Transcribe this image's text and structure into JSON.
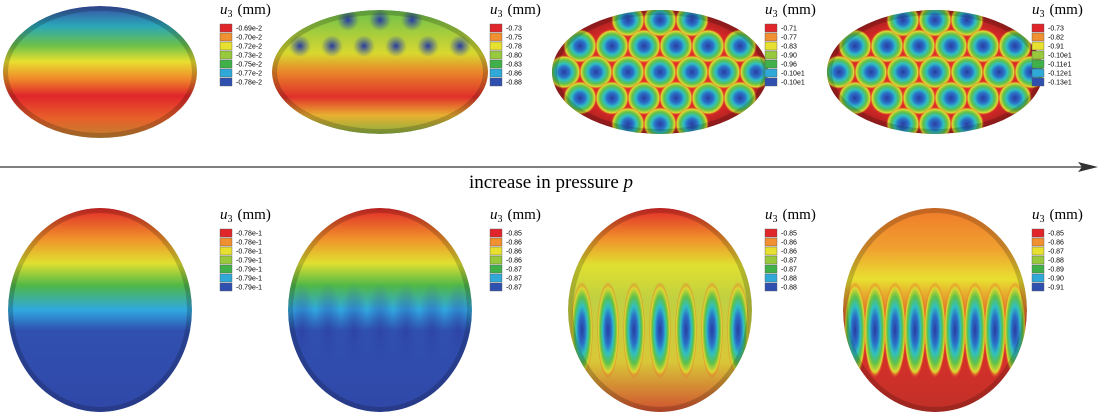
{
  "arrow": {
    "label": "increase in pressure",
    "variable": "p"
  },
  "rows": [
    {
      "panels": [
        {
          "legend": {
            "symbol": "u",
            "subscript": "3",
            "unit": "(mm)",
            "labels": [
              "-0.69e-2",
              "-0.70e-2",
              "-0.72e-2",
              "-0.73e-2",
              "-0.75e-2",
              "-0.77e-2",
              "-0.78e-2"
            ]
          }
        },
        {
          "legend": {
            "symbol": "u",
            "subscript": "3",
            "unit": "(mm)",
            "labels": [
              "-0.73",
              "-0.75",
              "-0.78",
              "-0.80",
              "-0.83",
              "-0.86",
              "-0.88"
            ]
          }
        },
        {
          "legend": {
            "symbol": "u",
            "subscript": "3",
            "unit": "(mm)",
            "labels": [
              "-0.71",
              "-0.77",
              "-0.83",
              "-0.90",
              "-0.96",
              "-0.10e1",
              "-0.10e1"
            ]
          }
        },
        {
          "legend": {
            "symbol": "u",
            "subscript": "3",
            "unit": "(mm)",
            "labels": [
              "-0.73",
              "-0.82",
              "-0.91",
              "-0.10e1",
              "-0.11e1",
              "-0.12e1",
              "-0.13e1"
            ]
          }
        }
      ]
    },
    {
      "panels": [
        {
          "legend": {
            "symbol": "u",
            "subscript": "3",
            "unit": "(mm)",
            "labels": [
              "-0.78e-1",
              "-0.78e-1",
              "-0.78e-1",
              "-0.79e-1",
              "-0.79e-1",
              "-0.79e-1",
              "-0.79e-1"
            ]
          }
        },
        {
          "legend": {
            "symbol": "u",
            "subscript": "3",
            "unit": "(mm)",
            "labels": [
              "-0.85",
              "-0.86",
              "-0.86",
              "-0.86",
              "-0.87",
              "-0.87",
              "-0.87"
            ]
          }
        },
        {
          "legend": {
            "symbol": "u",
            "subscript": "3",
            "unit": "(mm)",
            "labels": [
              "-0.85",
              "-0.86",
              "-0.86",
              "-0.87",
              "-0.87",
              "-0.88",
              "-0.88"
            ]
          }
        },
        {
          "legend": {
            "symbol": "u",
            "subscript": "3",
            "unit": "(mm)",
            "labels": [
              "-0.85",
              "-0.86",
              "-0.87",
              "-0.88",
              "-0.89",
              "-0.90",
              "-0.91"
            ]
          }
        }
      ]
    }
  ]
}
